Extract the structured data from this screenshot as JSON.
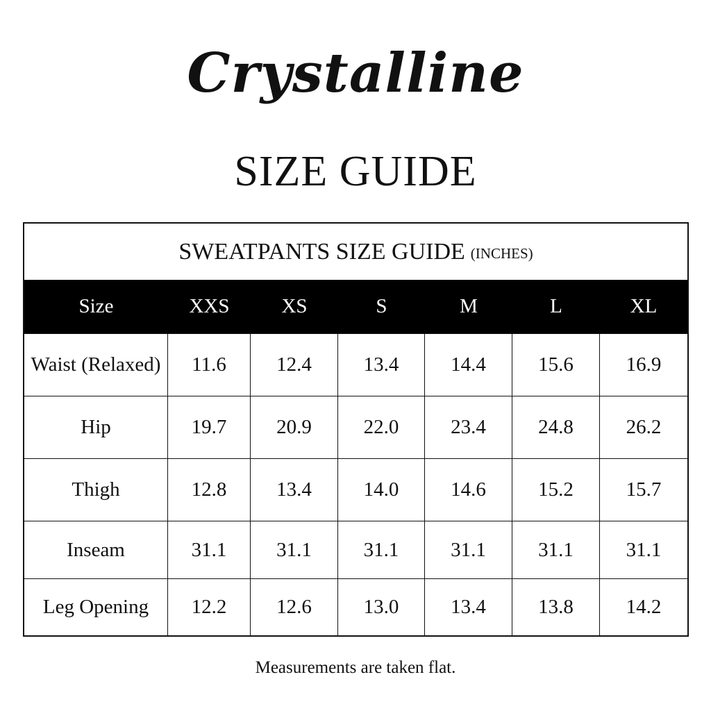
{
  "logo": "Crystalline",
  "title": "SIZE GUIDE",
  "table": {
    "caption": "SWEATPANTS SIZE GUIDE",
    "unit": "(INCHES)",
    "header": [
      "Size",
      "XXS",
      "XS",
      "S",
      "M",
      "L",
      "XL"
    ],
    "rows": [
      [
        "Waist (Relaxed)",
        "11.6",
        "12.4",
        "13.4",
        "14.4",
        "15.6",
        "16.9"
      ],
      [
        "Hip",
        "19.7",
        "20.9",
        "22.0",
        "23.4",
        "24.8",
        "26.2"
      ],
      [
        "Thigh",
        "12.8",
        "13.4",
        "14.0",
        "14.6",
        "15.2",
        "15.7"
      ],
      [
        "Inseam",
        "31.1",
        "31.1",
        "31.1",
        "31.1",
        "31.1",
        "31.1"
      ],
      [
        "Leg Opening",
        "12.2",
        "12.6",
        "13.0",
        "13.4",
        "13.8",
        "14.2"
      ]
    ]
  },
  "footer": "Measurements are taken flat."
}
